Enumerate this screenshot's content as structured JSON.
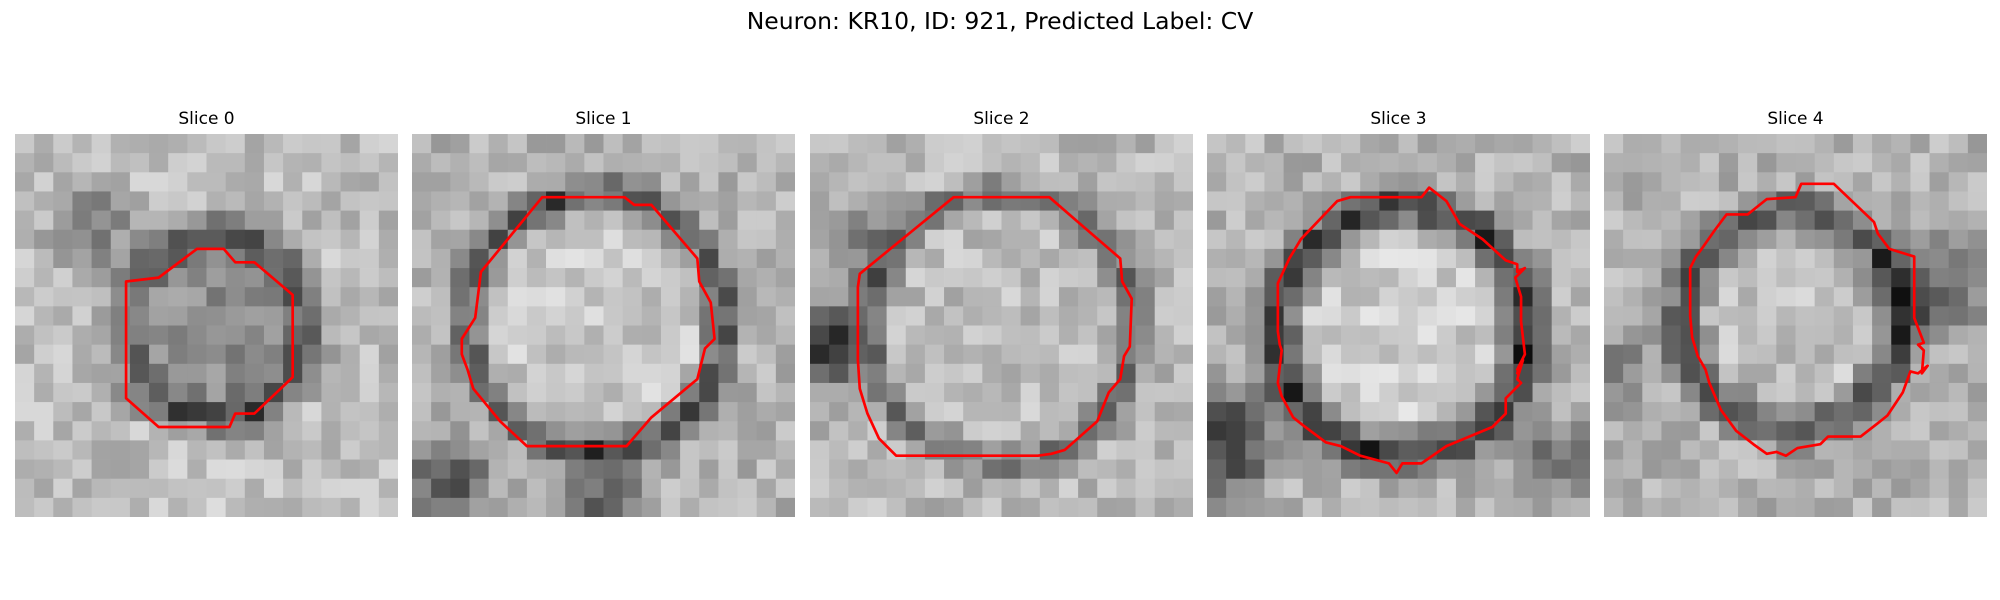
{
  "figure": {
    "title": "Neuron: KR10, ID: 921, Predicted Label: CV",
    "outline_color": "#ff0000"
  },
  "panels": [
    {
      "title": "Slice 0",
      "contour": [
        [
          7.5,
          7.5
        ],
        [
          9.5,
          6
        ],
        [
          10.9,
          6
        ],
        [
          11.5,
          6.7
        ],
        [
          12.5,
          6.7
        ],
        [
          14.5,
          8.4
        ],
        [
          14.5,
          12.7
        ],
        [
          12.5,
          14.6
        ],
        [
          11.5,
          14.6
        ],
        [
          11.2,
          15.3
        ],
        [
          7.5,
          15.3
        ],
        [
          5.8,
          13.8
        ],
        [
          5.8,
          7.7
        ]
      ]
    },
    {
      "title": "Slice 1",
      "contour": [
        [
          3.6,
          7.2
        ],
        [
          6.8,
          3.3
        ],
        [
          11.1,
          3.3
        ],
        [
          11.6,
          3.7
        ],
        [
          12.5,
          3.7
        ],
        [
          14.9,
          6.5
        ],
        [
          15,
          7.7
        ],
        [
          15.6,
          8.8
        ],
        [
          15.8,
          10.7
        ],
        [
          15.3,
          11.2
        ],
        [
          14.9,
          12.8
        ],
        [
          12.5,
          14.8
        ],
        [
          11.2,
          16.3
        ],
        [
          6,
          16.3
        ],
        [
          4.6,
          15
        ],
        [
          3.2,
          13.3
        ],
        [
          2.9,
          12.3
        ],
        [
          2.6,
          11.5
        ],
        [
          2.6,
          10.7
        ],
        [
          3.3,
          9.6
        ]
      ]
    },
    {
      "title": "Slice 2",
      "contour": [
        [
          2.6,
          7.3
        ],
        [
          7.5,
          3.3
        ],
        [
          12.5,
          3.3
        ],
        [
          14,
          4.6
        ],
        [
          16.2,
          6.5
        ],
        [
          16.3,
          7.7
        ],
        [
          16.8,
          8.6
        ],
        [
          16.7,
          11.1
        ],
        [
          16.4,
          11.6
        ],
        [
          16.2,
          12.8
        ],
        [
          15.6,
          13.5
        ],
        [
          15,
          15
        ],
        [
          13.3,
          16.5
        ],
        [
          12.6,
          16.7
        ],
        [
          11.9,
          16.8
        ],
        [
          11.3,
          16.8
        ],
        [
          4.5,
          16.8
        ],
        [
          3.6,
          15.9
        ],
        [
          3,
          14.6
        ],
        [
          2.6,
          13.3
        ],
        [
          2.5,
          11.8
        ],
        [
          2.5,
          8
        ]
      ]
    },
    {
      "title": "Slice 3",
      "contour": [
        [
          4.9,
          5.5
        ],
        [
          6.8,
          3.5
        ],
        [
          7.5,
          3.3
        ],
        [
          11.2,
          3.3
        ],
        [
          11.6,
          2.8
        ],
        [
          12.5,
          3.5
        ],
        [
          13.2,
          4.7
        ],
        [
          14.4,
          5.5
        ],
        [
          15.6,
          6.6
        ],
        [
          16.2,
          6.8
        ],
        [
          16.2,
          7.2
        ],
        [
          16.6,
          7
        ],
        [
          16.1,
          7.5
        ],
        [
          16.4,
          8.5
        ],
        [
          16.4,
          9.8
        ],
        [
          16.6,
          11.5
        ],
        [
          16.2,
          12.3
        ],
        [
          16.4,
          11.9
        ],
        [
          16.2,
          12.5
        ],
        [
          16.5,
          11.8
        ],
        [
          16.2,
          12.8
        ],
        [
          16.4,
          13
        ],
        [
          15.6,
          13.8
        ],
        [
          15.6,
          14.6
        ],
        [
          14.9,
          15.3
        ],
        [
          12.5,
          16.3
        ],
        [
          11.2,
          17.2
        ],
        [
          10.2,
          17.2
        ],
        [
          9.9,
          17.7
        ],
        [
          9.5,
          17.2
        ],
        [
          8,
          16.8
        ],
        [
          7,
          16.3
        ],
        [
          6.2,
          16.1
        ],
        [
          5,
          15.2
        ],
        [
          4.5,
          14.8
        ],
        [
          3.9,
          13.7
        ],
        [
          3.7,
          13
        ],
        [
          3.9,
          11.3
        ],
        [
          3.8,
          11
        ],
        [
          3.7,
          10.3
        ],
        [
          3.7,
          7.8
        ],
        [
          4.3,
          6.5
        ]
      ]
    },
    {
      "title": "Slice 4",
      "contour": [
        [
          5.8,
          5
        ],
        [
          6.4,
          4.2
        ],
        [
          7.5,
          4.2
        ],
        [
          8.5,
          3.4
        ],
        [
          10,
          3.3
        ],
        [
          10.3,
          2.6
        ],
        [
          12,
          2.6
        ],
        [
          14.1,
          4.6
        ],
        [
          14.3,
          5.2
        ],
        [
          14.9,
          6
        ],
        [
          16.2,
          6.4
        ],
        [
          16.2,
          9.6
        ],
        [
          16.7,
          10.9
        ],
        [
          16.4,
          11
        ],
        [
          16.7,
          11.3
        ],
        [
          16.6,
          12.5
        ],
        [
          16.9,
          12.1
        ],
        [
          16.4,
          12.5
        ],
        [
          16,
          12.4
        ],
        [
          15.6,
          13.5
        ],
        [
          14.8,
          14.7
        ],
        [
          14.3,
          15.1
        ],
        [
          13.4,
          15.8
        ],
        [
          11.7,
          15.8
        ],
        [
          11.3,
          16.2
        ],
        [
          10.1,
          16.4
        ],
        [
          9.5,
          16.8
        ],
        [
          9,
          16.6
        ],
        [
          8.5,
          16.7
        ],
        [
          7.8,
          16.2
        ],
        [
          6.9,
          15.5
        ],
        [
          6.1,
          14.4
        ],
        [
          5.5,
          13
        ],
        [
          5.3,
          12.3
        ],
        [
          4.9,
          11.6
        ],
        [
          4.6,
          10.6
        ],
        [
          4.5,
          9.5
        ],
        [
          4.5,
          7
        ],
        [
          4.8,
          6.4
        ],
        [
          5.1,
          6
        ]
      ]
    }
  ]
}
